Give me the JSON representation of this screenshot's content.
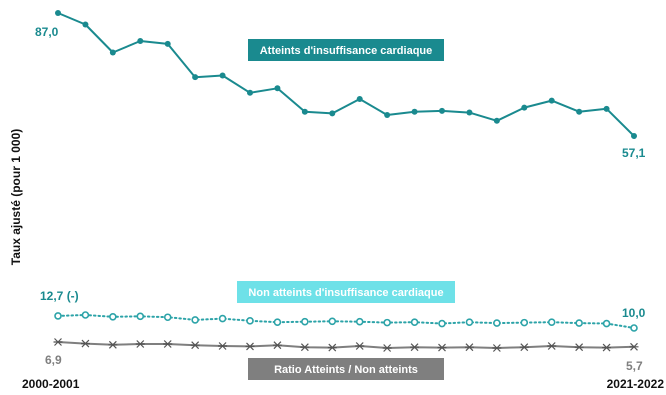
{
  "chart_data": {
    "type": "line",
    "ylabel": "Taux ajusté (pour 1 000)",
    "x_start_label": "2000-2001",
    "x_end_label": "2021-2022",
    "n_points": 22,
    "series": [
      {
        "name": "Atteints d'insuffisance cardiaque",
        "color": "#1a8a8f",
        "label_bg": "#1a8a8f",
        "line_style": "solid",
        "marker": "dot",
        "values": [
          87.0,
          84.2,
          77.4,
          80.2,
          79.5,
          71.4,
          71.8,
          67.6,
          68.7,
          63.0,
          62.6,
          66.1,
          62.2,
          63.0,
          63.2,
          62.8,
          60.8,
          64.0,
          65.7,
          63.0,
          63.7,
          57.1
        ],
        "start_label": "87,0",
        "end_label": "57,1"
      },
      {
        "name": "Non atteints d'insuffisance cardiaque",
        "color": "#2ca3a8",
        "label_bg": "#6ee1e8",
        "line_style": "dotted",
        "marker": "open-circle",
        "values": [
          12.7,
          12.9,
          12.5,
          12.6,
          12.4,
          11.8,
          12.1,
          11.6,
          11.3,
          11.4,
          11.5,
          11.4,
          11.2,
          11.3,
          11.0,
          11.3,
          11.1,
          11.2,
          11.3,
          11.1,
          11.0,
          10.0
        ],
        "start_label": "12,7 (-)",
        "end_label": "10,0"
      },
      {
        "name": "Ratio Atteints / Non atteints",
        "color": "#7f7f7f",
        "label_bg": "#7f7f7f",
        "line_style": "solid",
        "marker": "star",
        "values": [
          6.9,
          6.5,
          6.2,
          6.4,
          6.4,
          6.1,
          5.9,
          5.8,
          6.1,
          5.6,
          5.5,
          5.9,
          5.4,
          5.6,
          5.5,
          5.6,
          5.4,
          5.6,
          5.9,
          5.6,
          5.5,
          5.7
        ],
        "start_label": "6,9",
        "end_label": "5,7"
      }
    ],
    "grid": false
  }
}
